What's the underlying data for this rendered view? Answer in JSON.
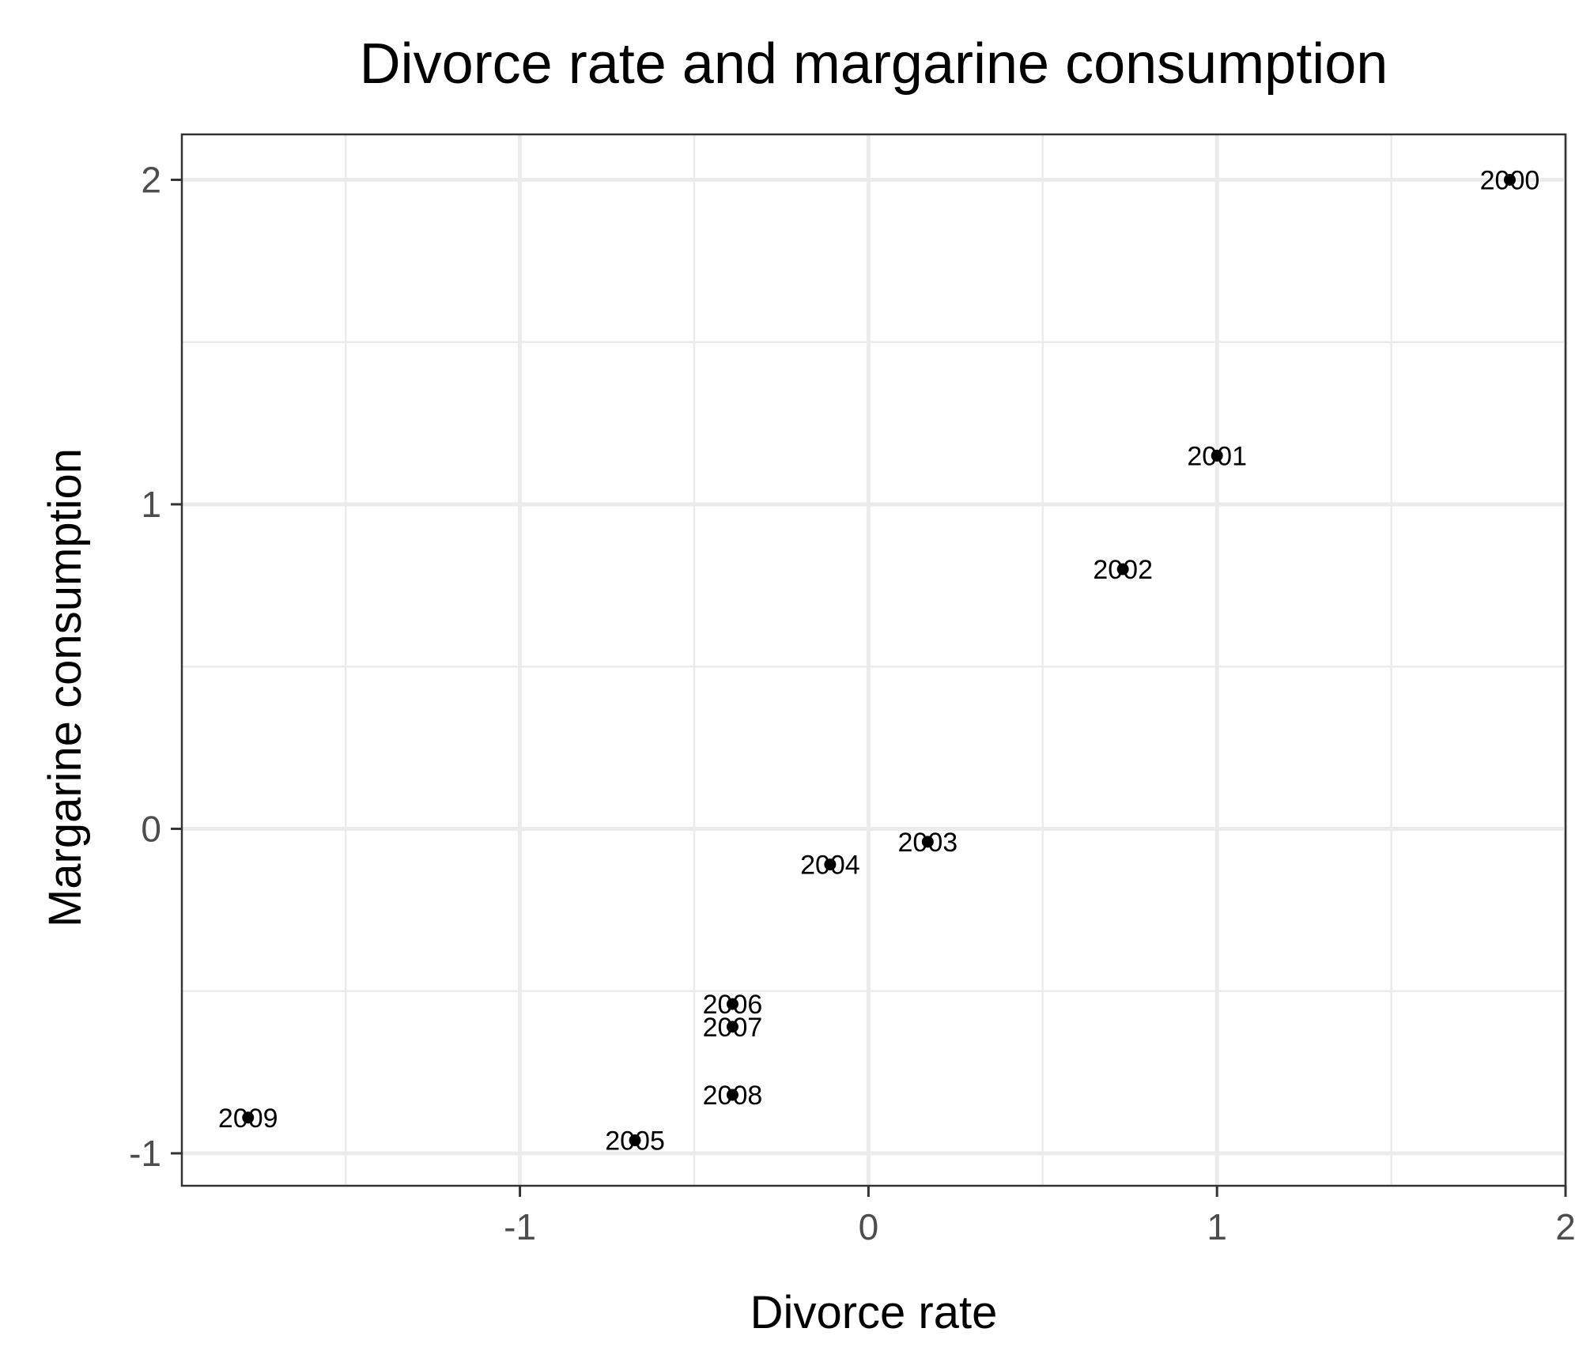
{
  "chart_data": {
    "type": "scatter",
    "title": "Divorce rate and margarine consumption",
    "xlabel": "Divorce rate",
    "ylabel": "Margarine consumption",
    "xlim": [
      -1.97,
      2.0
    ],
    "ylim": [
      -1.1,
      2.14
    ],
    "x_ticks": [
      -1,
      0,
      1,
      2
    ],
    "y_ticks": [
      -1,
      0,
      1,
      2
    ],
    "grid": true,
    "legend": "none",
    "point_color": "#000000",
    "points": [
      {
        "label": "2000",
        "x": 1.84,
        "y": 2.0
      },
      {
        "label": "2001",
        "x": 1.0,
        "y": 1.15
      },
      {
        "label": "2002",
        "x": 0.73,
        "y": 0.8
      },
      {
        "label": "2003",
        "x": 0.17,
        "y": -0.04
      },
      {
        "label": "2004",
        "x": -0.11,
        "y": -0.11
      },
      {
        "label": "2005",
        "x": -0.67,
        "y": -0.96
      },
      {
        "label": "2006",
        "x": -0.39,
        "y": -0.54
      },
      {
        "label": "2007",
        "x": -0.39,
        "y": -0.61
      },
      {
        "label": "2008",
        "x": -0.39,
        "y": -0.82
      },
      {
        "label": "2009",
        "x": -1.78,
        "y": -0.89
      }
    ]
  }
}
